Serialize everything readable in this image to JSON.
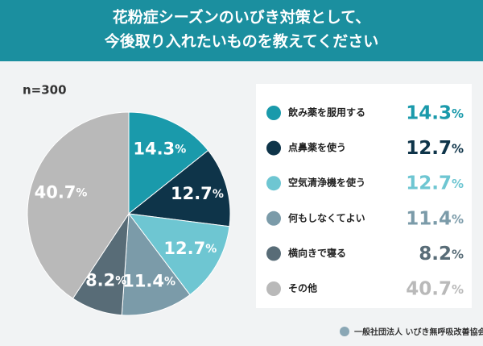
{
  "chart_data": {
    "type": "pie",
    "title": [
      "花粉症シーズンのいびき対策として、",
      "今後取り入れたいものを教えてください"
    ],
    "subtitle": "n=300",
    "categories": [
      "飲み薬を服用する",
      "点鼻薬を使う",
      "空気清浄機を使う",
      "何もしなくてよい",
      "横向きで寝る",
      "その他"
    ],
    "values": [
      14.3,
      12.7,
      12.7,
      11.4,
      8.2,
      40.7
    ],
    "value_labels": [
      "14.3%",
      "12.7%",
      "12.7%",
      "11.4%",
      "8.2%",
      "40.7%"
    ],
    "colors": [
      "#1a9aab",
      "#0e3449",
      "#6ec6d2",
      "#7b9ba9",
      "#586c77",
      "#b9b9b9"
    ],
    "source": "一般社団法人 いびき無呼吸改善協会"
  }
}
